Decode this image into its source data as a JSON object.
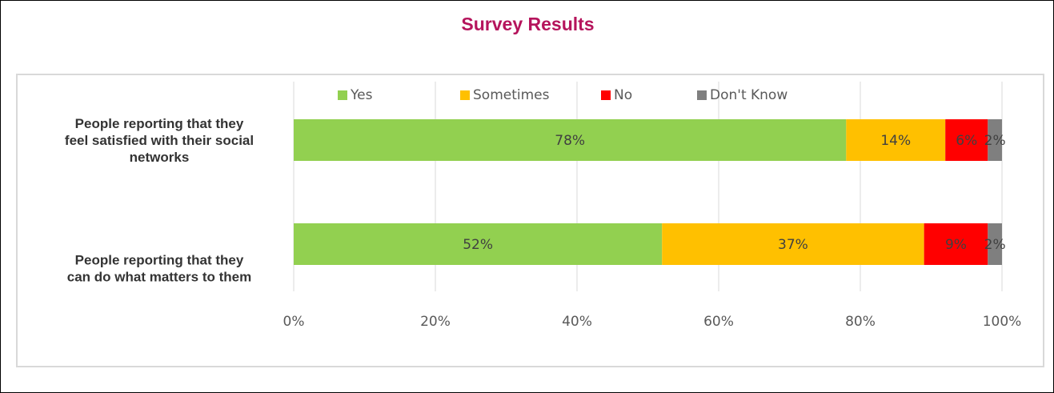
{
  "title": "Survey Results",
  "colors": {
    "title": "#b5145c",
    "Yes": "#92d050",
    "Sometimes": "#ffc000",
    "No": "#ff0000",
    "Don't Know": "#7f7f7f",
    "grid": "#d9d9d9"
  },
  "chart_data": {
    "type": "bar",
    "orientation": "horizontal",
    "stacked": "100%",
    "title": "Survey Results",
    "categories": [
      [
        "People reporting that they",
        "feel satisfied with their social",
        "networks"
      ],
      [
        "People reporting that they",
        "can do what matters to them"
      ]
    ],
    "series": [
      {
        "name": "Yes",
        "values": [
          78,
          52
        ],
        "labels": [
          "78%",
          "52%"
        ]
      },
      {
        "name": "Sometimes",
        "values": [
          14,
          37
        ],
        "labels": [
          "14%",
          "37%"
        ]
      },
      {
        "name": "No",
        "values": [
          6,
          9
        ],
        "labels": [
          "6%",
          "9%"
        ]
      },
      {
        "name": "Don't Know",
        "values": [
          2,
          2
        ],
        "labels": [
          "2%",
          "2%"
        ]
      }
    ],
    "xlim": [
      0,
      100
    ],
    "xticks": [
      "0%",
      "20%",
      "40%",
      "60%",
      "80%",
      "100%"
    ],
    "grid": true,
    "legend": "top"
  }
}
